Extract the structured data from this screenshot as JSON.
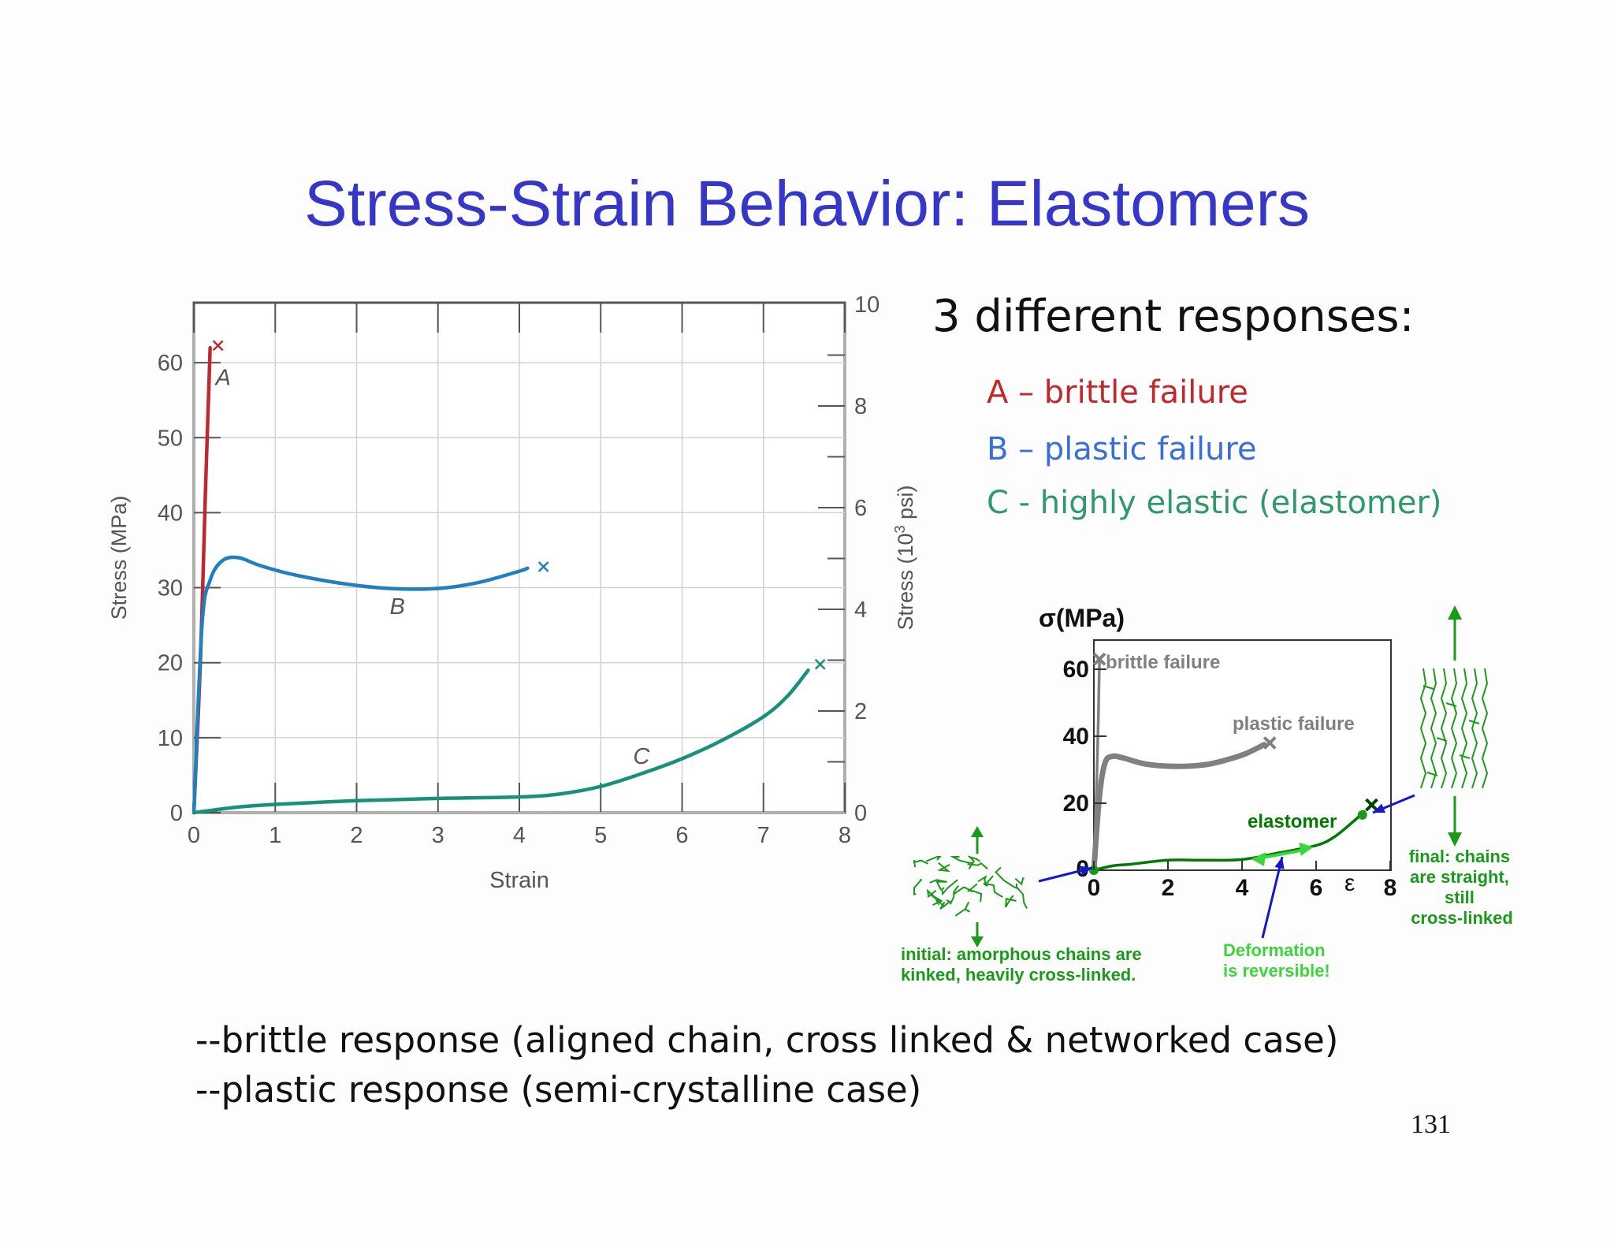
{
  "title": "Stress-Strain Behavior:  Elastomers",
  "responses": {
    "heading": "3 different responses:",
    "a": "A – brittle failure",
    "b": "B – plastic failure",
    "c": "C -  highly elastic (elastomer)"
  },
  "bullets": [
    "--brittle response (aligned chain, cross linked & networked case)",
    "--plastic response (semi-crystalline case)"
  ],
  "page_number": "131",
  "colors": {
    "title": "#3636c8",
    "a": "#c0282d",
    "b": "#3b6fd8",
    "c": "#2e9a6b",
    "green": "#1a9a1a",
    "blue_arrow": "#1616cc"
  },
  "chart_data": [
    {
      "type": "line",
      "xlabel": "Strain",
      "ylabel": "Stress (MPa)",
      "y2label": "Stress (10",
      "y2label_sup": "3",
      "y2label_end": " psi)",
      "xlim": [
        0,
        8
      ],
      "ylim": [
        0,
        68
      ],
      "y2lim": [
        0,
        10
      ],
      "x_ticks": [
        "0",
        "1",
        "2",
        "3",
        "4",
        "5",
        "6",
        "7",
        "8"
      ],
      "y_ticks": [
        "0",
        "10",
        "20",
        "30",
        "40",
        "50",
        "60"
      ],
      "y2_ticks": [
        "0",
        "2",
        "4",
        "6",
        "8",
        "10"
      ],
      "grid": true,
      "series": [
        {
          "name": "A",
          "color": "#c0282d",
          "points": [
            [
              0,
              0
            ],
            [
              0.08,
              20
            ],
            [
              0.14,
              42
            ],
            [
              0.2,
              62
            ]
          ],
          "failure": [
            0.2,
            62.5
          ]
        },
        {
          "name": "B",
          "color": "#1f7fbf",
          "points": [
            [
              0,
              0
            ],
            [
              0.1,
              25
            ],
            [
              0.2,
              31
            ],
            [
              0.35,
              33.6
            ],
            [
              0.55,
              34
            ],
            [
              0.8,
              33
            ],
            [
              1.2,
              31.8
            ],
            [
              1.8,
              30.6
            ],
            [
              2.4,
              29.9
            ],
            [
              3.0,
              29.9
            ],
            [
              3.5,
              30.7
            ],
            [
              4.0,
              32.2
            ],
            [
              4.1,
              32.6
            ]
          ],
          "failure": [
            4.2,
            33
          ]
        },
        {
          "name": "C",
          "color": "#17917a",
          "points": [
            [
              0,
              0
            ],
            [
              0.5,
              0.7
            ],
            [
              1,
              1.1
            ],
            [
              2,
              1.6
            ],
            [
              3,
              1.9
            ],
            [
              4,
              2.1
            ],
            [
              4.5,
              2.5
            ],
            [
              5,
              3.5
            ],
            [
              5.5,
              5.2
            ],
            [
              6,
              7.2
            ],
            [
              6.5,
              9.7
            ],
            [
              7,
              12.8
            ],
            [
              7.3,
              15.6
            ],
            [
              7.55,
              19
            ]
          ],
          "failure": [
            7.6,
            20
          ]
        }
      ],
      "series_labels": [
        "A",
        "B",
        "C"
      ]
    },
    {
      "type": "line",
      "ylabel_symbol": "σ(MPa)",
      "xlabel_symbol": "ε",
      "xlim": [
        0,
        8
      ],
      "ylim": [
        0,
        72
      ],
      "x_ticks": [
        "0",
        "2",
        "4",
        "6",
        "8"
      ],
      "y_ticks": [
        "20",
        "40",
        "60"
      ],
      "zero_label": "0",
      "series": [
        {
          "name": "brittle failure",
          "color": "#808080",
          "points": [
            [
              0,
              0
            ],
            [
              0.06,
              20
            ],
            [
              0.12,
              45
            ],
            [
              0.15,
              62
            ]
          ],
          "failure": [
            0.15,
            63
          ]
        },
        {
          "name": "plastic failure",
          "color": "#808080",
          "points": [
            [
              0,
              0
            ],
            [
              0.15,
              22
            ],
            [
              0.3,
              32
            ],
            [
              0.5,
              34
            ],
            [
              0.8,
              33.5
            ],
            [
              1.4,
              31.7
            ],
            [
              2.2,
              31
            ],
            [
              3,
              31.5
            ],
            [
              3.6,
              33
            ],
            [
              4.1,
              34.8
            ],
            [
              4.6,
              37.5
            ]
          ],
          "failure": [
            4.75,
            38
          ]
        },
        {
          "name": "elastomer",
          "color": "#007a00",
          "points": [
            [
              0,
              0
            ],
            [
              0.5,
              1.3
            ],
            [
              1,
              1.8
            ],
            [
              2,
              3
            ],
            [
              3,
              3
            ],
            [
              4,
              3.2
            ],
            [
              5,
              5.2
            ],
            [
              6,
              7.4
            ],
            [
              6.5,
              10
            ],
            [
              7,
              14.5
            ],
            [
              7.3,
              17.5
            ]
          ],
          "failure": [
            7.5,
            19.5
          ]
        }
      ],
      "annotations": {
        "initial": [
          "initial:  amorphous chains are",
          "kinked, heavily cross-linked."
        ],
        "final": [
          "final:  chains",
          "are straight,",
          "still",
          "cross-linked"
        ],
        "reversible": [
          "Deformation",
          "is reversible!"
        ]
      }
    }
  ]
}
